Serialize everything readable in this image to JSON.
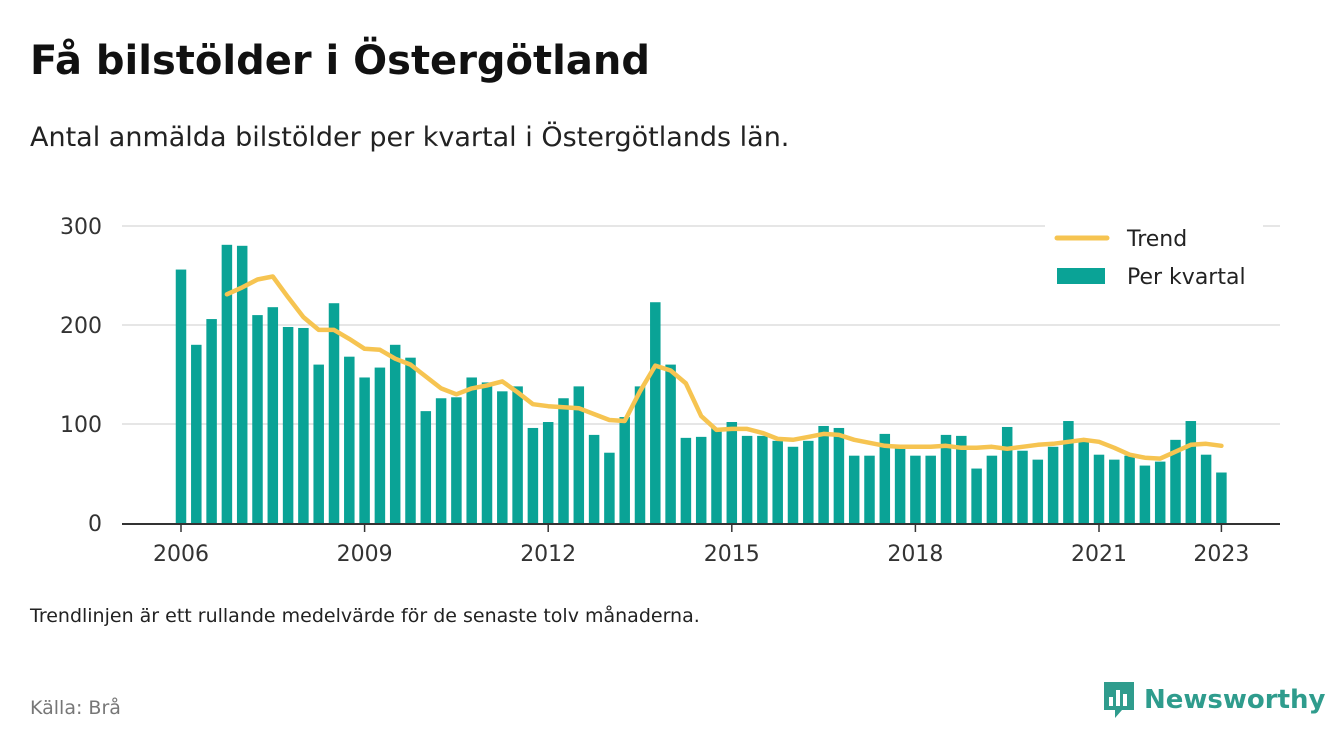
{
  "header": {
    "title": "Få bilstölder i Östergötland",
    "subtitle": "Antal anmälda bilstölder per kvartal i Östergötlands län."
  },
  "footer": {
    "note": "Trendlinjen är ett rullande medelvärde för de senaste tolv månaderna.",
    "source": "Källa: Brå",
    "brand": "Newsworthy"
  },
  "colors": {
    "bar": "#0aa396",
    "trend": "#f6c451",
    "brand": "#2f9c8d",
    "grid": "#dddddd",
    "axis": "#333333"
  },
  "icons": {
    "brand_logo": "bar-chart-bubble-icon"
  },
  "chart_data": {
    "type": "bar",
    "xaxis": {
      "ticks": [
        "2006",
        "2009",
        "2012",
        "2015",
        "2018",
        "2021",
        "2023"
      ]
    },
    "yaxis": {
      "ticks": [
        0,
        100,
        200,
        300
      ],
      "ylim": [
        0,
        300
      ]
    },
    "grid": true,
    "legend": {
      "position": "top-right",
      "entries": [
        "Trend",
        "Per kvartal"
      ]
    },
    "categories": [
      "2006 Q1",
      "2006 Q2",
      "2006 Q3",
      "2006 Q4",
      "2007 Q1",
      "2007 Q2",
      "2007 Q3",
      "2007 Q4",
      "2008 Q1",
      "2008 Q2",
      "2008 Q3",
      "2008 Q4",
      "2009 Q1",
      "2009 Q2",
      "2009 Q3",
      "2009 Q4",
      "2010 Q1",
      "2010 Q2",
      "2010 Q3",
      "2010 Q4",
      "2011 Q1",
      "2011 Q2",
      "2011 Q3",
      "2011 Q4",
      "2012 Q1",
      "2012 Q2",
      "2012 Q3",
      "2012 Q4",
      "2013 Q1",
      "2013 Q2",
      "2013 Q3",
      "2013 Q4",
      "2014 Q1",
      "2014 Q2",
      "2014 Q3",
      "2014 Q4",
      "2015 Q1",
      "2015 Q2",
      "2015 Q3",
      "2015 Q4",
      "2016 Q1",
      "2016 Q2",
      "2016 Q3",
      "2016 Q4",
      "2017 Q1",
      "2017 Q2",
      "2017 Q3",
      "2017 Q4",
      "2018 Q1",
      "2018 Q2",
      "2018 Q3",
      "2018 Q4",
      "2019 Q1",
      "2019 Q2",
      "2019 Q3",
      "2019 Q4",
      "2020 Q1",
      "2020 Q2",
      "2020 Q3",
      "2020 Q4",
      "2021 Q1",
      "2021 Q2",
      "2021 Q3",
      "2021 Q4",
      "2022 Q1",
      "2022 Q2",
      "2022 Q3",
      "2022 Q4",
      "2023 Q1"
    ],
    "series": [
      {
        "name": "Per kvartal",
        "type": "bar",
        "values": [
          256,
          180,
          206,
          281,
          280,
          210,
          218,
          198,
          197,
          160,
          222,
          168,
          147,
          157,
          180,
          167,
          113,
          126,
          127,
          147,
          142,
          133,
          138,
          96,
          102,
          126,
          138,
          89,
          71,
          107,
          138,
          223,
          160,
          86,
          87,
          96,
          102,
          88,
          88,
          83,
          77,
          83,
          98,
          96,
          68,
          68,
          90,
          77,
          68,
          68,
          89,
          88,
          55,
          68,
          97,
          73,
          64,
          77,
          103,
          82,
          69,
          64,
          68,
          58,
          62,
          84,
          103,
          69,
          51
        ]
      },
      {
        "name": "Trend",
        "type": "line",
        "values": [
          null,
          null,
          null,
          231,
          238,
          246,
          249,
          228,
          208,
          195,
          195,
          186,
          176,
          175,
          166,
          160,
          148,
          136,
          130,
          136,
          139,
          143,
          132,
          120,
          118,
          117,
          116,
          110,
          104,
          103,
          133,
          159,
          154,
          141,
          108,
          94,
          95,
          95,
          91,
          85,
          84,
          87,
          90,
          89,
          84,
          81,
          78,
          77,
          77,
          77,
          78,
          76,
          76,
          77,
          75,
          77,
          79,
          80,
          82,
          84,
          82,
          76,
          69,
          66,
          65,
          72,
          79,
          80,
          78
        ]
      }
    ]
  }
}
